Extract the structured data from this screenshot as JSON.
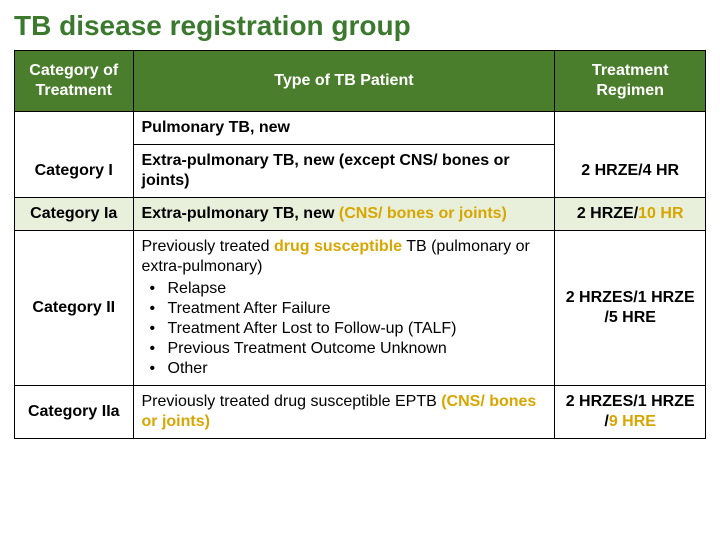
{
  "title": "TB disease registration group",
  "table": {
    "headers": {
      "category": "Category of Treatment",
      "type": "Type of TB Patient",
      "regimen": "Treatment Regimen"
    },
    "rows": {
      "catI_sub1": "Pulmonary TB, new",
      "catI_label": "Category I",
      "catI_sub2": "Extra-pulmonary TB, new (except CNS/ bones or joints)",
      "catI_regimen": "2 HRZE/4 HR",
      "catIa_label": "Category Ia",
      "catIa_type_pre": "Extra-pulmonary TB, new ",
      "catIa_type_hl": "(CNS/ bones or joints)",
      "catIa_reg_pre": "2 HRZE/",
      "catIa_reg_hl": "10 HR",
      "catII_label": "Category II",
      "catII_intro_pre": "Previously treated ",
      "catII_intro_hl": "drug susceptible",
      "catII_intro_post": " TB (pulmonary or extra-pulmonary)",
      "catII_b1": "Relapse",
      "catII_b2": "Treatment After Failure",
      "catII_b3": "Treatment After Lost to Follow-up (TALF)",
      "catII_b4": "Previous Treatment Outcome Unknown",
      "catII_b5": "Other",
      "catII_regimen": "2 HRZES/1 HRZE /5 HRE",
      "catIIa_label": "Category IIa",
      "catIIa_pre": "Previously treated drug susceptible EPTB ",
      "catIIa_hl": "(CNS/ bones or joints)",
      "catIIa_reg_pre": "2 HRZES/1 HRZE /",
      "catIIa_reg_hl": "9 HRE"
    }
  },
  "colors": {
    "header_bg": "#4a7d2c",
    "title_color": "#3b7a2e",
    "highlight_color": "#d8a600",
    "row_Ia_bg": "#e8f0dc"
  }
}
